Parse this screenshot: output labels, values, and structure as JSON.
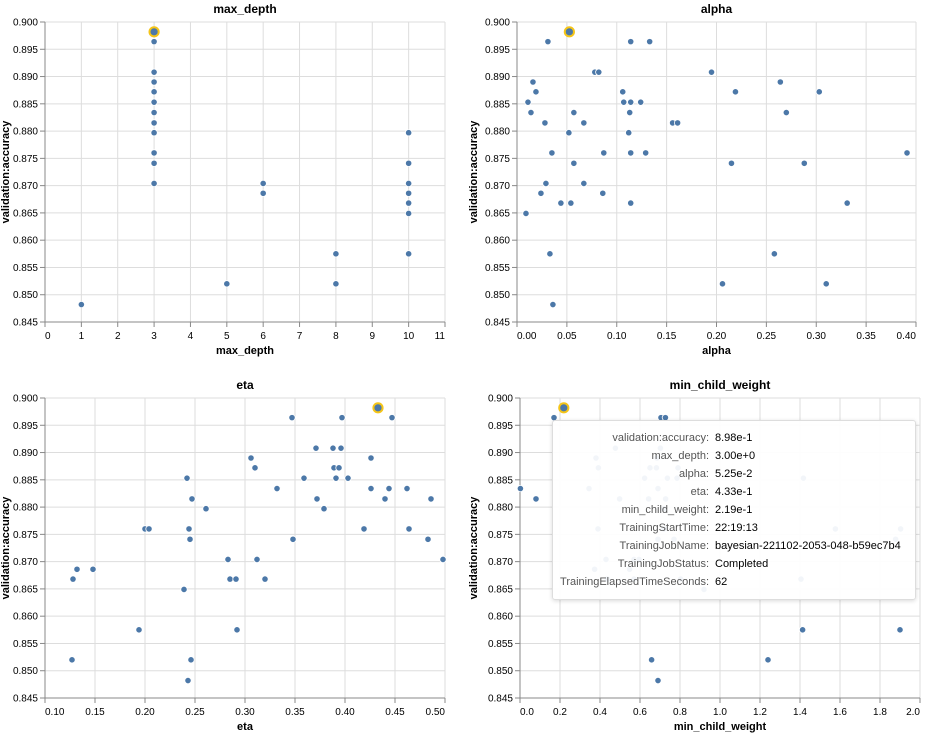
{
  "colors": {
    "point": "#4c78a8",
    "highlight": "#f5c518",
    "grid": "#dddddd",
    "axis": "#888888"
  },
  "chart_data": [
    {
      "type": "scatter",
      "title": "max_depth",
      "xlabel": "max_depth",
      "ylabel": "validation:accuracy",
      "xlim": [
        0,
        11
      ],
      "ylim": [
        0.845,
        0.9
      ],
      "x_ticks": [
        0,
        1,
        2,
        3,
        4,
        5,
        6,
        7,
        8,
        9,
        10,
        11
      ],
      "x_tick_labels": [
        "0",
        "1",
        "2",
        "3",
        "4",
        "5",
        "6",
        "7",
        "8",
        "9",
        "10",
        "11"
      ],
      "y_ticks": [
        0.845,
        0.85,
        0.855,
        0.86,
        0.865,
        0.87,
        0.875,
        0.88,
        0.885,
        0.89,
        0.895,
        0.9
      ],
      "y_tick_labels": [
        "0.845",
        "0.850",
        "0.855",
        "0.860",
        "0.865",
        "0.870",
        "0.875",
        "0.880",
        "0.885",
        "0.890",
        "0.895",
        "0.900"
      ],
      "highlight": [
        3,
        0.8982
      ],
      "points": [
        [
          3,
          0.8964
        ],
        [
          3,
          0.8908
        ],
        [
          3,
          0.889
        ],
        [
          3,
          0.8872
        ],
        [
          3,
          0.8853
        ],
        [
          3,
          0.8834
        ],
        [
          3,
          0.8815
        ],
        [
          3,
          0.8797
        ],
        [
          3,
          0.876
        ],
        [
          3,
          0.8741
        ],
        [
          3,
          0.8704
        ],
        [
          1,
          0.8482
        ],
        [
          5,
          0.852
        ],
        [
          6,
          0.8704
        ],
        [
          6,
          0.8686
        ],
        [
          8,
          0.8575
        ],
        [
          8,
          0.852
        ],
        [
          10,
          0.8797
        ],
        [
          10,
          0.8741
        ],
        [
          10,
          0.8704
        ],
        [
          10,
          0.8686
        ],
        [
          10,
          0.8668
        ],
        [
          10,
          0.8649
        ],
        [
          10,
          0.8575
        ]
      ]
    },
    {
      "type": "scatter",
      "title": "alpha",
      "xlabel": "alpha",
      "ylabel": "validation:accuracy",
      "xlim": [
        0,
        0.4
      ],
      "ylim": [
        0.845,
        0.9
      ],
      "x_ticks": [
        0,
        0.05,
        0.1,
        0.15,
        0.2,
        0.25,
        0.3,
        0.35,
        0.4
      ],
      "x_tick_labels": [
        "0.00",
        "0.05",
        "0.10",
        "0.15",
        "0.20",
        "0.25",
        "0.30",
        "0.35",
        "0.40"
      ],
      "y_ticks": [
        0.845,
        0.85,
        0.855,
        0.86,
        0.865,
        0.87,
        0.875,
        0.88,
        0.885,
        0.89,
        0.895,
        0.9
      ],
      "y_tick_labels": [
        "0.845",
        "0.850",
        "0.855",
        "0.860",
        "0.865",
        "0.870",
        "0.875",
        "0.880",
        "0.885",
        "0.890",
        "0.895",
        "0.900"
      ],
      "highlight": [
        0.0525,
        0.8982
      ],
      "points": [
        [
          0.031,
          0.8964
        ],
        [
          0.114,
          0.8964
        ],
        [
          0.133,
          0.8964
        ],
        [
          0.078,
          0.8908
        ],
        [
          0.082,
          0.8908
        ],
        [
          0.195,
          0.8908
        ],
        [
          0.016,
          0.889
        ],
        [
          0.264,
          0.889
        ],
        [
          0.019,
          0.8872
        ],
        [
          0.106,
          0.8872
        ],
        [
          0.219,
          0.8872
        ],
        [
          0.303,
          0.8872
        ],
        [
          0.011,
          0.8853
        ],
        [
          0.107,
          0.8853
        ],
        [
          0.114,
          0.8853
        ],
        [
          0.124,
          0.8853
        ],
        [
          0.014,
          0.8834
        ],
        [
          0.057,
          0.8834
        ],
        [
          0.113,
          0.8834
        ],
        [
          0.27,
          0.8834
        ],
        [
          0.028,
          0.8815
        ],
        [
          0.067,
          0.8815
        ],
        [
          0.156,
          0.8815
        ],
        [
          0.161,
          0.8815
        ],
        [
          0.052,
          0.8797
        ],
        [
          0.112,
          0.8797
        ],
        [
          0.035,
          0.876
        ],
        [
          0.087,
          0.876
        ],
        [
          0.114,
          0.876
        ],
        [
          0.129,
          0.876
        ],
        [
          0.391,
          0.876
        ],
        [
          0.057,
          0.8741
        ],
        [
          0.215,
          0.8741
        ],
        [
          0.288,
          0.8741
        ],
        [
          0.029,
          0.8704
        ],
        [
          0.067,
          0.8704
        ],
        [
          0.024,
          0.8686
        ],
        [
          0.086,
          0.8686
        ],
        [
          0.044,
          0.8668
        ],
        [
          0.054,
          0.8668
        ],
        [
          0.114,
          0.8668
        ],
        [
          0.331,
          0.8668
        ],
        [
          0.009,
          0.8649
        ],
        [
          0.033,
          0.8575
        ],
        [
          0.258,
          0.8575
        ],
        [
          0.206,
          0.852
        ],
        [
          0.31,
          0.852
        ],
        [
          0.036,
          0.8482
        ]
      ]
    },
    {
      "type": "scatter",
      "title": "eta",
      "xlabel": "eta",
      "ylabel": "validation:accuracy",
      "xlim": [
        0.1,
        0.5
      ],
      "ylim": [
        0.845,
        0.9
      ],
      "x_ticks": [
        0.1,
        0.15,
        0.2,
        0.25,
        0.3,
        0.35,
        0.4,
        0.45,
        0.5
      ],
      "x_tick_labels": [
        "0.10",
        "0.15",
        "0.20",
        "0.25",
        "0.30",
        "0.35",
        "0.40",
        "0.45",
        "0.50"
      ],
      "y_ticks": [
        0.845,
        0.85,
        0.855,
        0.86,
        0.865,
        0.87,
        0.875,
        0.88,
        0.885,
        0.89,
        0.895,
        0.9
      ],
      "y_tick_labels": [
        "0.845",
        "0.850",
        "0.855",
        "0.860",
        "0.865",
        "0.870",
        "0.875",
        "0.880",
        "0.885",
        "0.890",
        "0.895",
        "0.900"
      ],
      "highlight": [
        0.433,
        0.8982
      ],
      "points": [
        [
          0.347,
          0.8964
        ],
        [
          0.397,
          0.8964
        ],
        [
          0.447,
          0.8964
        ],
        [
          0.371,
          0.8908
        ],
        [
          0.388,
          0.8908
        ],
        [
          0.396,
          0.8908
        ],
        [
          0.306,
          0.889
        ],
        [
          0.426,
          0.889
        ],
        [
          0.31,
          0.8872
        ],
        [
          0.389,
          0.8872
        ],
        [
          0.394,
          0.8872
        ],
        [
          0.242,
          0.8853
        ],
        [
          0.359,
          0.8853
        ],
        [
          0.391,
          0.8853
        ],
        [
          0.403,
          0.8853
        ],
        [
          0.332,
          0.8834
        ],
        [
          0.426,
          0.8834
        ],
        [
          0.444,
          0.8834
        ],
        [
          0.462,
          0.8834
        ],
        [
          0.247,
          0.8815
        ],
        [
          0.372,
          0.8815
        ],
        [
          0.44,
          0.8815
        ],
        [
          0.486,
          0.8815
        ],
        [
          0.261,
          0.8797
        ],
        [
          0.379,
          0.8797
        ],
        [
          0.2,
          0.876
        ],
        [
          0.204,
          0.876
        ],
        [
          0.244,
          0.876
        ],
        [
          0.419,
          0.876
        ],
        [
          0.464,
          0.876
        ],
        [
          0.245,
          0.8741
        ],
        [
          0.348,
          0.8741
        ],
        [
          0.483,
          0.8741
        ],
        [
          0.283,
          0.8704
        ],
        [
          0.312,
          0.8704
        ],
        [
          0.498,
          0.8704
        ],
        [
          0.132,
          0.8686
        ],
        [
          0.148,
          0.8686
        ],
        [
          0.128,
          0.8668
        ],
        [
          0.285,
          0.8668
        ],
        [
          0.291,
          0.8668
        ],
        [
          0.32,
          0.8668
        ],
        [
          0.239,
          0.8649
        ],
        [
          0.194,
          0.8575
        ],
        [
          0.292,
          0.8575
        ],
        [
          0.127,
          0.852
        ],
        [
          0.246,
          0.852
        ],
        [
          0.243,
          0.8482
        ]
      ]
    },
    {
      "type": "scatter",
      "title": "min_child_weight",
      "xlabel": "min_child_weight",
      "ylabel": "validation:accuracy",
      "xlim": [
        0,
        2
      ],
      "ylim": [
        0.845,
        0.9
      ],
      "x_ticks": [
        0,
        0.2,
        0.4,
        0.6,
        0.8,
        1,
        1.2,
        1.4,
        1.6,
        1.8,
        2
      ],
      "x_tick_labels": [
        "0.0",
        "0.2",
        "0.4",
        "0.6",
        "0.8",
        "1.0",
        "1.2",
        "1.4",
        "1.6",
        "1.8",
        "2.0"
      ],
      "y_ticks": [
        0.845,
        0.85,
        0.855,
        0.86,
        0.865,
        0.87,
        0.875,
        0.88,
        0.885,
        0.89,
        0.895,
        0.9
      ],
      "y_tick_labels": [
        "0.845",
        "0.850",
        "0.855",
        "0.860",
        "0.865",
        "0.870",
        "0.875",
        "0.880",
        "0.885",
        "0.890",
        "0.895",
        "0.900"
      ],
      "highlight": [
        0.219,
        0.8982
      ],
      "points": [
        [
          0.17,
          0.8964
        ],
        [
          0.705,
          0.8964
        ],
        [
          0.727,
          0.8964
        ],
        [
          0.477,
          0.8908
        ],
        [
          0.702,
          0.8908
        ],
        [
          0.38,
          0.889
        ],
        [
          0.685,
          0.889
        ],
        [
          0.392,
          0.8872
        ],
        [
          0.65,
          0.8872
        ],
        [
          0.682,
          0.8872
        ],
        [
          0.79,
          0.8872
        ],
        [
          0.623,
          0.8853
        ],
        [
          0.737,
          0.8853
        ],
        [
          0.785,
          0.8853
        ],
        [
          1.417,
          0.8853
        ],
        [
          0.002,
          0.8834
        ],
        [
          0.345,
          0.8834
        ],
        [
          0.69,
          0.8834
        ],
        [
          0.08,
          0.8815
        ],
        [
          0.498,
          0.8815
        ],
        [
          0.643,
          0.8815
        ],
        [
          0.728,
          0.8815
        ],
        [
          0.72,
          0.8797
        ],
        [
          0.39,
          0.876
        ],
        [
          0.72,
          0.876
        ],
        [
          1.577,
          0.876
        ],
        [
          1.903,
          0.876
        ],
        [
          0.69,
          0.8741
        ],
        [
          0.77,
          0.8741
        ],
        [
          1.878,
          0.8741
        ],
        [
          0.43,
          0.8704
        ],
        [
          0.57,
          0.8704
        ],
        [
          0.595,
          0.8704
        ],
        [
          0.373,
          0.8686
        ],
        [
          0.548,
          0.8686
        ],
        [
          0.437,
          0.8668
        ],
        [
          0.57,
          0.8668
        ],
        [
          0.803,
          0.8668
        ],
        [
          1.405,
          0.8668
        ],
        [
          0.92,
          0.8649
        ],
        [
          1.413,
          0.8575
        ],
        [
          1.9,
          0.8575
        ],
        [
          0.658,
          0.852
        ],
        [
          1.24,
          0.852
        ],
        [
          0.69,
          0.8482
        ]
      ]
    }
  ],
  "tooltip": {
    "rows": [
      {
        "key": "validation:accuracy:",
        "value": "8.98e-1"
      },
      {
        "key": "max_depth:",
        "value": "3.00e+0"
      },
      {
        "key": "alpha:",
        "value": "5.25e-2"
      },
      {
        "key": "eta:",
        "value": "4.33e-1"
      },
      {
        "key": "min_child_weight:",
        "value": "2.19e-1"
      },
      {
        "key": "TrainingStartTime:",
        "value": "22:19:13"
      },
      {
        "key": "TrainingJobName:",
        "value": "bayesian-221102-2053-048-b59ec7b4"
      },
      {
        "key": "TrainingJobStatus:",
        "value": "Completed"
      },
      {
        "key": "TrainingElapsedTimeSeconds:",
        "value": "62"
      }
    ]
  }
}
